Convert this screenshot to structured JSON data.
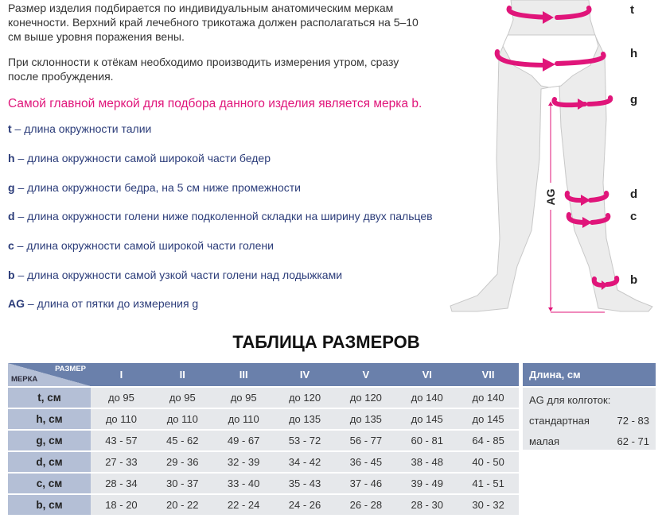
{
  "intro": {
    "line1": "Размер изделия подбирается по индивидуальным анатомическим меркам",
    "line2": "конечности. Верхний край лечебного трикотажа должен располагаться на 5–10",
    "line3": "см выше уровня поражения вены.",
    "line4": "При склонности к отёкам необходимо производить измерения утром, сразу",
    "line5": "после пробуждения."
  },
  "highlight": "Самой главной меркой для подбора данного изделия является мерка b.",
  "definitions": [
    {
      "key": "t",
      "text": " – длина окружности талии"
    },
    {
      "key": "h",
      "text": " – длина окружности самой широкой части бедер"
    },
    {
      "key": "g",
      "text": " – длина окружности бедра, на 5 см ниже промежности"
    },
    {
      "key": "d",
      "text": " – длина окружности голени ниже подколенной складки на ширину двух пальцев"
    },
    {
      "key": "c",
      "text": " – длина окружности самой широкой части голени"
    },
    {
      "key": "b",
      "text": " – длина окружности самой узкой части голени над лодыжками"
    },
    {
      "key": "AG",
      "text": " – длина от пятки до измерения g"
    }
  ],
  "diagram": {
    "labels": [
      "t",
      "h",
      "g",
      "d",
      "c",
      "b"
    ],
    "ag": "AG",
    "accent": "#e0157a"
  },
  "table": {
    "title": "ТАБЛИЦА РАЗМЕРОВ",
    "corner_top": "РАЗМЕР",
    "corner_bottom": "МЕРКА",
    "sizes": [
      "I",
      "II",
      "III",
      "IV",
      "V",
      "VI",
      "VII"
    ],
    "rows": [
      {
        "label": "t, см",
        "values": [
          "до 95",
          "до 95",
          "до 95",
          "до 120",
          "до 120",
          "до 140",
          "до 140"
        ]
      },
      {
        "label": "h, см",
        "values": [
          "до 110",
          "до 110",
          "до 110",
          "до 135",
          "до 135",
          "до 145",
          "до 145"
        ]
      },
      {
        "label": "g, см",
        "values": [
          "43 - 57",
          "45 - 62",
          "49 - 67",
          "53 - 72",
          "56 - 77",
          "60 - 81",
          "64 - 85"
        ]
      },
      {
        "label": "d, см",
        "values": [
          "27 - 33",
          "29 - 36",
          "32 - 39",
          "34 - 42",
          "36 - 45",
          "38 - 48",
          "40 - 50"
        ]
      },
      {
        "label": "c, см",
        "values": [
          "28 - 34",
          "30 - 37",
          "33 - 40",
          "35 - 43",
          "37 - 46",
          "39 - 49",
          "41 - 51"
        ]
      },
      {
        "label": "b, см",
        "values": [
          "18 - 20",
          "20 - 22",
          "22 - 24",
          "24 - 26",
          "26 - 28",
          "28 - 30",
          "30 - 32"
        ]
      }
    ],
    "colors": {
      "header": "#6a80ab",
      "label": "#b4bfd6",
      "cell": "#e6e8eb"
    }
  },
  "length": {
    "title": "Длина, см",
    "subtitle": "AG для колготок:",
    "items": [
      {
        "name": "стандартная",
        "value": "72 - 83"
      },
      {
        "name": "малая",
        "value": "62 - 71"
      }
    ]
  }
}
